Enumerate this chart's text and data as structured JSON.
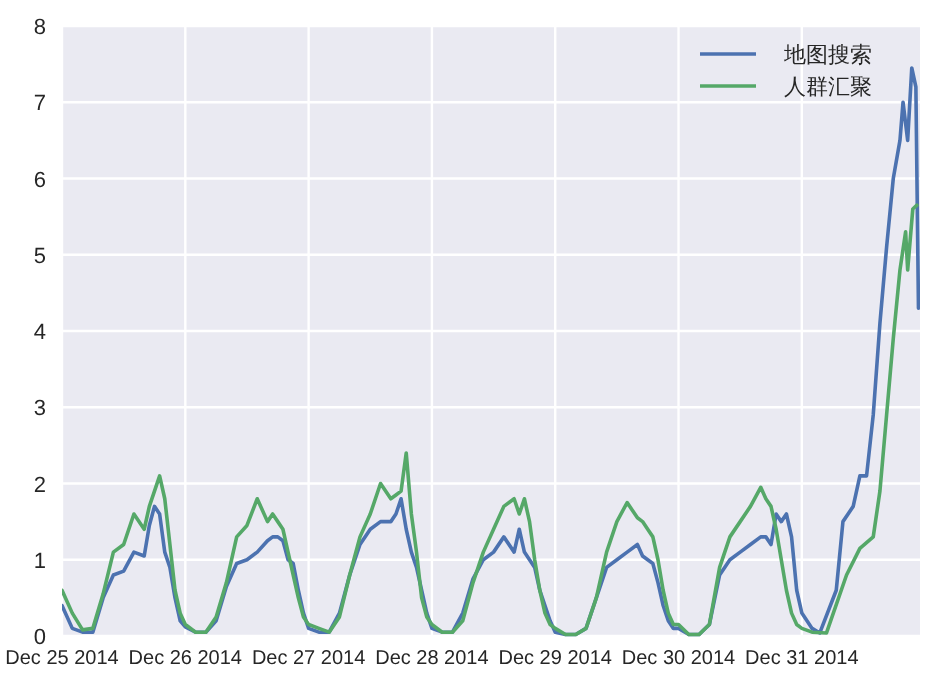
{
  "chart_data": {
    "type": "line",
    "xlim": [
      "2014-12-25T00:00",
      "2014-12-31T23:00"
    ],
    "xticks": [
      {
        "value": "2014-12-25",
        "label": "Dec 25 2014"
      },
      {
        "value": "2014-12-26",
        "label": "Dec 26 2014"
      },
      {
        "value": "2014-12-27",
        "label": "Dec 27 2014"
      },
      {
        "value": "2014-12-28",
        "label": "Dec 28 2014"
      },
      {
        "value": "2014-12-29",
        "label": "Dec 29 2014"
      },
      {
        "value": "2014-12-30",
        "label": "Dec 30 2014"
      },
      {
        "value": "2014-12-31",
        "label": "Dec 31 2014"
      }
    ],
    "ylim": [
      0,
      8
    ],
    "yticks": [
      0,
      1,
      2,
      3,
      4,
      5,
      6,
      7,
      8
    ],
    "grid": true,
    "legend": "top right",
    "marker": "none",
    "line_style": "solid",
    "series": [
      {
        "name": "地图搜索",
        "color": "#4c72b0",
        "x": [
          "2014-12-25T00:00",
          "2014-12-25T02:00",
          "2014-12-25T04:00",
          "2014-12-25T06:00",
          "2014-12-25T08:00",
          "2014-12-25T10:00",
          "2014-12-25T12:00",
          "2014-12-25T14:00",
          "2014-12-25T16:00",
          "2014-12-25T17:00",
          "2014-12-25T18:00",
          "2014-12-25T19:00",
          "2014-12-25T20:00",
          "2014-12-25T21:00",
          "2014-12-25T22:00",
          "2014-12-25T23:00",
          "2014-12-26T00:00",
          "2014-12-26T02:00",
          "2014-12-26T04:00",
          "2014-12-26T06:00",
          "2014-12-26T08:00",
          "2014-12-26T10:00",
          "2014-12-26T12:00",
          "2014-12-26T14:00",
          "2014-12-26T16:00",
          "2014-12-26T17:00",
          "2014-12-26T18:00",
          "2014-12-26T19:00",
          "2014-12-26T20:00",
          "2014-12-26T21:00",
          "2014-12-26T22:00",
          "2014-12-26T23:00",
          "2014-12-27T00:00",
          "2014-12-27T02:00",
          "2014-12-27T04:00",
          "2014-12-27T06:00",
          "2014-12-27T08:00",
          "2014-12-27T10:00",
          "2014-12-27T12:00",
          "2014-12-27T14:00",
          "2014-12-27T16:00",
          "2014-12-27T17:00",
          "2014-12-27T18:00",
          "2014-12-27T19:00",
          "2014-12-27T20:00",
          "2014-12-27T21:00",
          "2014-12-27T22:00",
          "2014-12-27T23:00",
          "2014-12-28T00:00",
          "2014-12-28T02:00",
          "2014-12-28T04:00",
          "2014-12-28T06:00",
          "2014-12-28T08:00",
          "2014-12-28T10:00",
          "2014-12-28T12:00",
          "2014-12-28T14:00",
          "2014-12-28T16:00",
          "2014-12-28T17:00",
          "2014-12-28T18:00",
          "2014-12-28T19:00",
          "2014-12-28T20:00",
          "2014-12-28T21:00",
          "2014-12-28T22:00",
          "2014-12-28T23:00",
          "2014-12-29T00:00",
          "2014-12-29T02:00",
          "2014-12-29T04:00",
          "2014-12-29T06:00",
          "2014-12-29T08:00",
          "2014-12-29T10:00",
          "2014-12-29T12:00",
          "2014-12-29T14:00",
          "2014-12-29T16:00",
          "2014-12-29T17:00",
          "2014-12-29T18:00",
          "2014-12-29T19:00",
          "2014-12-29T20:00",
          "2014-12-29T21:00",
          "2014-12-29T22:00",
          "2014-12-29T23:00",
          "2014-12-30T00:00",
          "2014-12-30T02:00",
          "2014-12-30T04:00",
          "2014-12-30T06:00",
          "2014-12-30T08:00",
          "2014-12-30T10:00",
          "2014-12-30T12:00",
          "2014-12-30T14:00",
          "2014-12-30T16:00",
          "2014-12-30T17:00",
          "2014-12-30T18:00",
          "2014-12-30T19:00",
          "2014-12-30T20:00",
          "2014-12-30T21:00",
          "2014-12-30T22:00",
          "2014-12-30T23:00",
          "2014-12-31T00:00",
          "2014-12-31T02:00",
          "2014-12-31T03:30",
          "2014-12-31T06:42",
          "2014-12-31T08:00",
          "2014-12-31T10:00",
          "2014-12-31T11:18",
          "2014-12-31T12:36",
          "2014-12-31T13:54",
          "2014-12-31T15:12",
          "2014-12-31T16:30",
          "2014-12-31T17:48",
          "2014-12-31T19:06",
          "2014-12-31T19:42",
          "2014-12-31T20:36",
          "2014-12-31T21:24",
          "2014-12-31T22:12",
          "2014-12-31T22:42"
        ],
        "values": [
          0.4,
          0.1,
          0.05,
          0.05,
          0.5,
          0.8,
          0.85,
          1.1,
          1.05,
          1.45,
          1.7,
          1.6,
          1.1,
          0.9,
          0.5,
          0.2,
          0.12,
          0.05,
          0.05,
          0.2,
          0.65,
          0.95,
          1.0,
          1.1,
          1.25,
          1.3,
          1.3,
          1.25,
          1.0,
          0.95,
          0.6,
          0.3,
          0.1,
          0.05,
          0.05,
          0.3,
          0.8,
          1.2,
          1.4,
          1.5,
          1.5,
          1.6,
          1.8,
          1.4,
          1.1,
          0.9,
          0.6,
          0.3,
          0.1,
          0.05,
          0.05,
          0.3,
          0.75,
          1.0,
          1.1,
          1.3,
          1.1,
          1.4,
          1.1,
          1.0,
          0.9,
          0.6,
          0.4,
          0.2,
          0.05,
          0.02,
          0.02,
          0.1,
          0.5,
          0.9,
          1.0,
          1.1,
          1.2,
          1.05,
          1.0,
          0.95,
          0.7,
          0.4,
          0.2,
          0.1,
          0.1,
          0.02,
          0.02,
          0.15,
          0.8,
          1.0,
          1.1,
          1.2,
          1.3,
          1.3,
          1.2,
          1.6,
          1.5,
          1.6,
          1.3,
          0.6,
          0.3,
          0.1,
          0.04,
          0.6,
          1.5,
          1.7,
          2.1,
          2.1,
          2.9,
          4.1,
          5.1,
          6.0,
          6.5,
          7.0,
          6.5,
          7.45,
          7.2,
          4.3
        ]
      },
      {
        "name": "人群汇聚",
        "color": "#55a868",
        "x": [
          "2014-12-25T00:00",
          "2014-12-25T02:00",
          "2014-12-25T04:00",
          "2014-12-25T06:00",
          "2014-12-25T08:00",
          "2014-12-25T10:00",
          "2014-12-25T12:00",
          "2014-12-25T14:00",
          "2014-12-25T16:00",
          "2014-12-25T17:00",
          "2014-12-25T18:00",
          "2014-12-25T19:00",
          "2014-12-25T20:00",
          "2014-12-25T21:00",
          "2014-12-25T22:00",
          "2014-12-25T23:00",
          "2014-12-26T00:00",
          "2014-12-26T02:00",
          "2014-12-26T04:00",
          "2014-12-26T06:00",
          "2014-12-26T08:00",
          "2014-12-26T10:00",
          "2014-12-26T12:00",
          "2014-12-26T14:00",
          "2014-12-26T16:00",
          "2014-12-26T17:00",
          "2014-12-26T18:00",
          "2014-12-26T19:00",
          "2014-12-26T20:00",
          "2014-12-26T21:00",
          "2014-12-26T22:00",
          "2014-12-26T23:00",
          "2014-12-27T00:00",
          "2014-12-27T02:00",
          "2014-12-27T04:00",
          "2014-12-27T06:00",
          "2014-12-27T08:00",
          "2014-12-27T10:00",
          "2014-12-27T12:00",
          "2014-12-27T14:00",
          "2014-12-27T16:00",
          "2014-12-27T17:00",
          "2014-12-27T18:00",
          "2014-12-27T19:00",
          "2014-12-27T20:00",
          "2014-12-27T21:00",
          "2014-12-27T22:00",
          "2014-12-27T23:00",
          "2014-12-28T00:00",
          "2014-12-28T02:00",
          "2014-12-28T04:00",
          "2014-12-28T06:00",
          "2014-12-28T08:00",
          "2014-12-28T10:00",
          "2014-12-28T12:00",
          "2014-12-28T14:00",
          "2014-12-28T16:00",
          "2014-12-28T17:00",
          "2014-12-28T18:00",
          "2014-12-28T19:00",
          "2014-12-28T20:00",
          "2014-12-28T21:00",
          "2014-12-28T22:00",
          "2014-12-28T23:00",
          "2014-12-29T00:00",
          "2014-12-29T02:00",
          "2014-12-29T04:00",
          "2014-12-29T06:00",
          "2014-12-29T08:00",
          "2014-12-29T10:00",
          "2014-12-29T12:00",
          "2014-12-29T14:00",
          "2014-12-29T16:00",
          "2014-12-29T17:00",
          "2014-12-29T18:00",
          "2014-12-29T19:00",
          "2014-12-29T20:00",
          "2014-12-29T21:00",
          "2014-12-29T22:00",
          "2014-12-29T23:00",
          "2014-12-30T00:00",
          "2014-12-30T02:00",
          "2014-12-30T04:00",
          "2014-12-30T06:00",
          "2014-12-30T08:00",
          "2014-12-30T10:00",
          "2014-12-30T12:00",
          "2014-12-30T14:00",
          "2014-12-30T16:00",
          "2014-12-30T17:00",
          "2014-12-30T18:00",
          "2014-12-30T19:00",
          "2014-12-30T20:00",
          "2014-12-30T21:00",
          "2014-12-30T22:00",
          "2014-12-30T23:00",
          "2014-12-31T00:00",
          "2014-12-31T02:00",
          "2014-12-31T04:48",
          "2014-12-31T08:42",
          "2014-12-31T11:18",
          "2014-12-31T13:54",
          "2014-12-31T15:12",
          "2014-12-31T16:30",
          "2014-12-31T17:48",
          "2014-12-31T19:06",
          "2014-12-31T20:12",
          "2014-12-31T20:36",
          "2014-12-31T21:36",
          "2014-12-31T22:24"
        ],
        "values": [
          0.6,
          0.3,
          0.08,
          0.1,
          0.55,
          1.1,
          1.2,
          1.6,
          1.4,
          1.7,
          1.9,
          2.1,
          1.8,
          1.2,
          0.6,
          0.3,
          0.15,
          0.05,
          0.05,
          0.25,
          0.7,
          1.3,
          1.45,
          1.8,
          1.5,
          1.6,
          1.5,
          1.4,
          1.1,
          0.8,
          0.5,
          0.25,
          0.15,
          0.1,
          0.05,
          0.25,
          0.8,
          1.3,
          1.6,
          2.0,
          1.8,
          1.85,
          1.9,
          2.4,
          1.6,
          1.1,
          0.5,
          0.25,
          0.15,
          0.05,
          0.05,
          0.2,
          0.7,
          1.1,
          1.4,
          1.7,
          1.8,
          1.6,
          1.8,
          1.5,
          1.0,
          0.6,
          0.3,
          0.15,
          0.1,
          0.02,
          0.02,
          0.1,
          0.5,
          1.1,
          1.5,
          1.75,
          1.55,
          1.5,
          1.4,
          1.3,
          1.0,
          0.6,
          0.3,
          0.15,
          0.15,
          0.02,
          0.02,
          0.15,
          0.9,
          1.3,
          1.5,
          1.7,
          1.95,
          1.8,
          1.7,
          1.4,
          1.0,
          0.6,
          0.3,
          0.15,
          0.1,
          0.05,
          0.04,
          0.8,
          1.15,
          1.3,
          1.9,
          2.9,
          3.9,
          4.8,
          5.3,
          4.8,
          5.6,
          5.65
        ]
      }
    ]
  }
}
